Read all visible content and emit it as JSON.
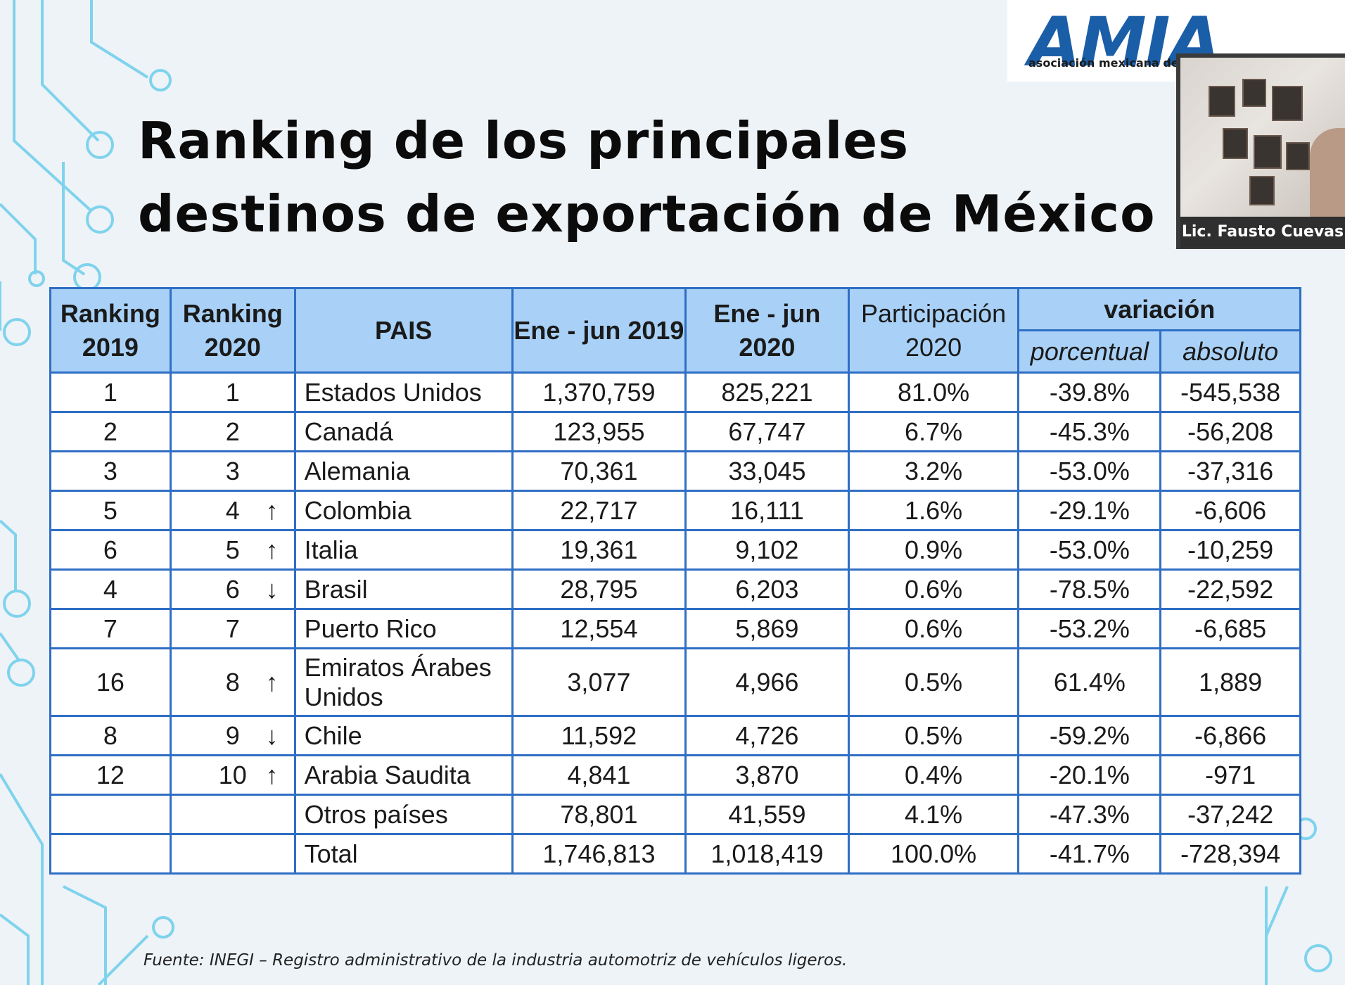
{
  "slide": {
    "title": "Ranking de los principales destinos de exportación de México",
    "logo_text": "AMIA",
    "logo_subtitle": "asociación mexicana de la",
    "source_note": "Fuente: INEGI – Registro administrativo de la industria automotriz de vehículos ligeros."
  },
  "video": {
    "participant_name": "Lic. Fausto Cuevas"
  },
  "table": {
    "headers": {
      "rank2019": "Ranking 2019",
      "rank2020": "Ranking 2020",
      "country": "PAIS",
      "jan_jun_2019": "Ene - jun 2019",
      "jan_jun_2020": "Ene - jun 2020",
      "share_2020": "Participación 2020",
      "variation": "variación",
      "percent": "porcentual",
      "absolute": "absoluto"
    },
    "rows": [
      {
        "rank2019": "1",
        "rank2020": "1",
        "arrow": "",
        "country": "Estados Unidos",
        "v2019": "1,370,759",
        "v2020": "825,221",
        "share": "81.0%",
        "pct": "-39.8%",
        "abs": "-545,538"
      },
      {
        "rank2019": "2",
        "rank2020": "2",
        "arrow": "",
        "country": "Canadá",
        "v2019": "123,955",
        "v2020": "67,747",
        "share": "6.7%",
        "pct": "-45.3%",
        "abs": "-56,208"
      },
      {
        "rank2019": "3",
        "rank2020": "3",
        "arrow": "",
        "country": "Alemania",
        "v2019": "70,361",
        "v2020": "33,045",
        "share": "3.2%",
        "pct": "-53.0%",
        "abs": "-37,316"
      },
      {
        "rank2019": "5",
        "rank2020": "4",
        "arrow": "↑",
        "country": "Colombia",
        "v2019": "22,717",
        "v2020": "16,111",
        "share": "1.6%",
        "pct": "-29.1%",
        "abs": "-6,606"
      },
      {
        "rank2019": "6",
        "rank2020": "5",
        "arrow": "↑",
        "country": "Italia",
        "v2019": "19,361",
        "v2020": "9,102",
        "share": "0.9%",
        "pct": "-53.0%",
        "abs": "-10,259"
      },
      {
        "rank2019": "4",
        "rank2020": "6",
        "arrow": "↓",
        "country": "Brasil",
        "v2019": "28,795",
        "v2020": "6,203",
        "share": "0.6%",
        "pct": "-78.5%",
        "abs": "-22,592"
      },
      {
        "rank2019": "7",
        "rank2020": "7",
        "arrow": "",
        "country": "Puerto Rico",
        "v2019": "12,554",
        "v2020": "5,869",
        "share": "0.6%",
        "pct": "-53.2%",
        "abs": "-6,685"
      },
      {
        "rank2019": "16",
        "rank2020": "8",
        "arrow": "↑",
        "country": "Emiratos Árabes Unidos",
        "v2019": "3,077",
        "v2020": "4,966",
        "share": "0.5%",
        "pct": "61.4%",
        "abs": "1,889"
      },
      {
        "rank2019": "8",
        "rank2020": "9",
        "arrow": "↓",
        "country": "Chile",
        "v2019": "11,592",
        "v2020": "4,726",
        "share": "0.5%",
        "pct": "-59.2%",
        "abs": "-6,866"
      },
      {
        "rank2019": "12",
        "rank2020": "10",
        "arrow": "↑",
        "country": "Arabia Saudita",
        "v2019": "4,841",
        "v2020": "3,870",
        "share": "0.4%",
        "pct": "-20.1%",
        "abs": "-971"
      },
      {
        "rank2019": "",
        "rank2020": "",
        "arrow": "",
        "country": "Otros países",
        "v2019": "78,801",
        "v2020": "41,559",
        "share": "4.1%",
        "pct": "-47.3%",
        "abs": "-37,242"
      },
      {
        "rank2019": "",
        "rank2020": "",
        "arrow": "",
        "country": "Total",
        "v2019": "1,746,813",
        "v2020": "1,018,419",
        "share": "100.0%",
        "pct": "-41.7%",
        "abs": "-728,394"
      }
    ]
  },
  "colors": {
    "header_bg": "#a9d1f7",
    "border": "#2f6ec5",
    "logo_blue": "#1b5ea8",
    "circuit": "#7fd3ec"
  }
}
